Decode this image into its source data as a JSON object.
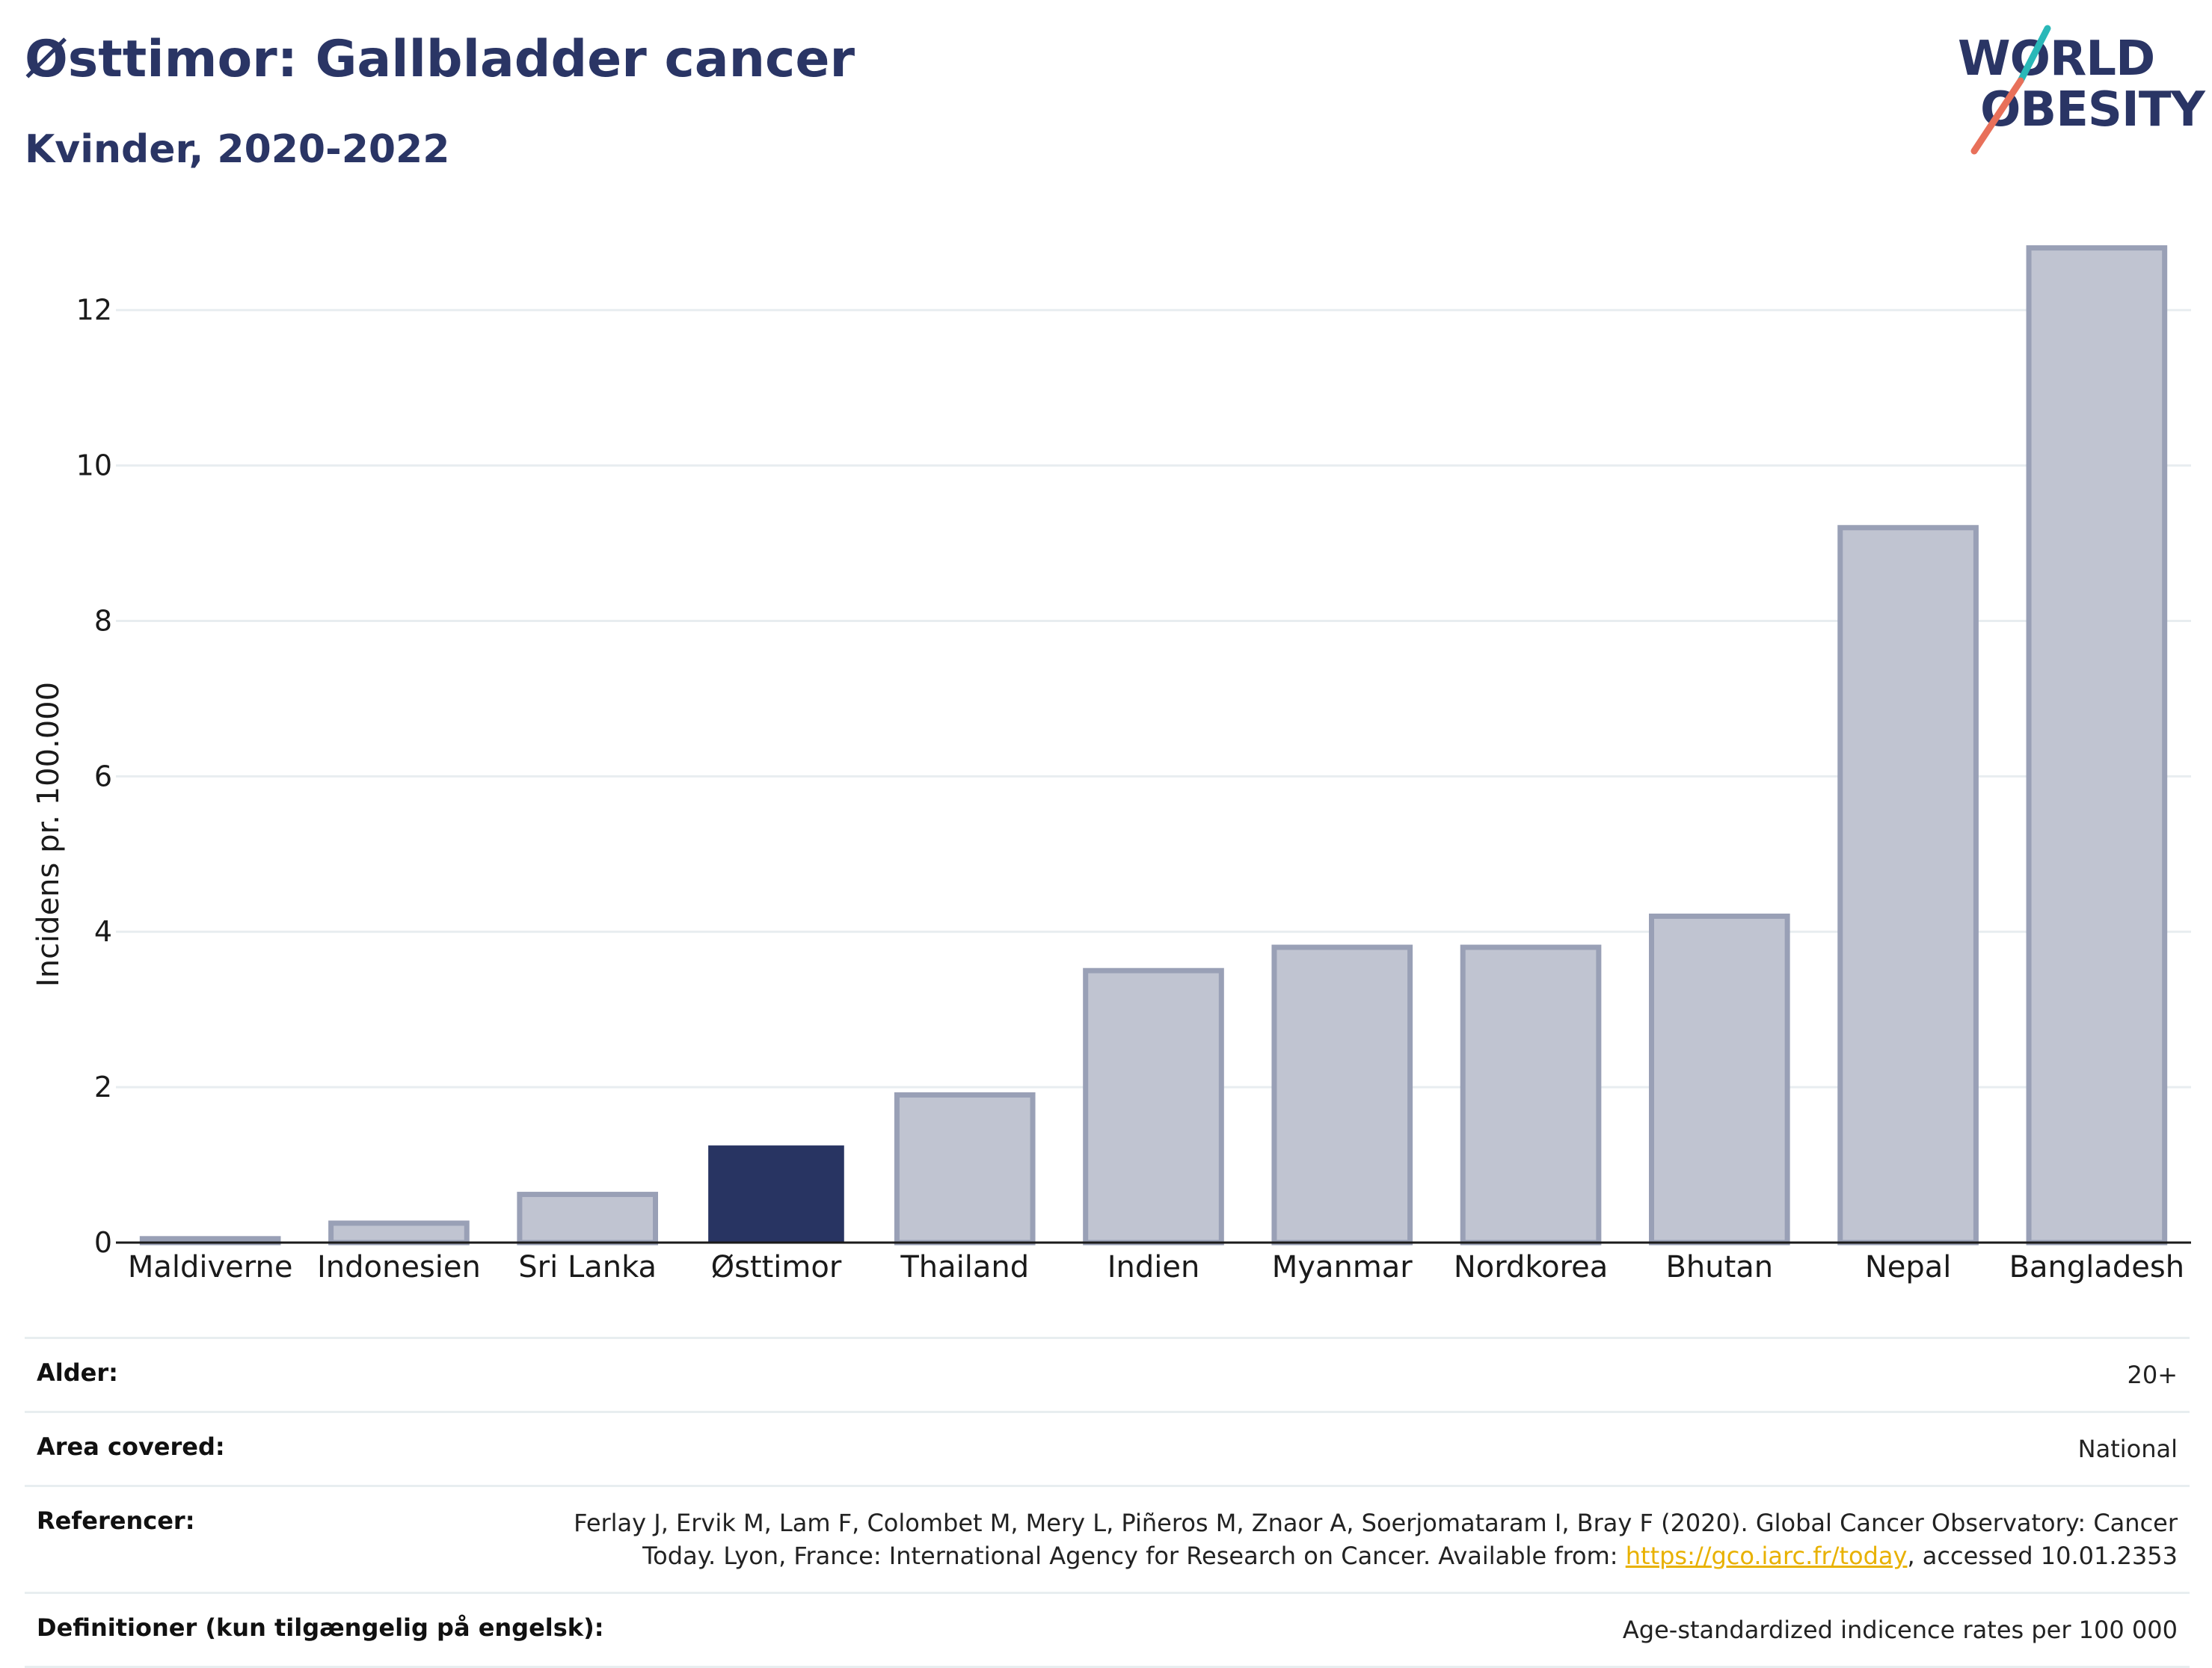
{
  "header": {
    "title": "Østtimor: Gallbladder cancer",
    "subtitle": "Kvinder, 2020-2022"
  },
  "logo": {
    "line1": "WORLD",
    "line2": "OBESITY",
    "brand_color": "#2a3565",
    "accent_colors": [
      "#2ab8b8",
      "#e8705a"
    ]
  },
  "colors": {
    "highlight_bar": "#283462",
    "other_bar_fill": "#c0c4d1",
    "other_bar_stroke": "#99a0b6",
    "grid": "#e8edf0",
    "axis": "#1a1a1a"
  },
  "chart_data": {
    "type": "bar",
    "ylabel": "Incidens pr. 100.000",
    "ylim": [
      0,
      13.2
    ],
    "yticks": [
      0,
      2,
      4,
      6,
      8,
      10,
      12
    ],
    "grid": true,
    "highlight": "Østtimor",
    "categories": [
      "Maldiverne",
      "Indonesien",
      "Sri Lanka",
      "Østtimor",
      "Thailand",
      "Indien",
      "Myanmar",
      "Nordkorea",
      "Bhutan",
      "Nepal",
      "Bangladesh"
    ],
    "values": [
      0.05,
      0.25,
      0.62,
      1.25,
      1.9,
      3.5,
      3.8,
      3.8,
      4.2,
      9.2,
      12.8
    ]
  },
  "meta": {
    "rows": [
      {
        "key": "Alder:",
        "value": "20+"
      },
      {
        "key": "Area covered:",
        "value": "National"
      },
      {
        "key": "Referencer:",
        "value_line1": "Ferlay J, Ervik M, Lam F, Colombet M, Mery L, Piñeros M, Znaor A, Soerjomataram I, Bray F (2020). Global Cancer Observatory: Cancer",
        "value_line2_pre": "Today. Lyon, France: International Agency for Research on Cancer. Available from: ",
        "link": "https://gco.iarc.fr/today",
        "value_line2_post": ", accessed 10.01.2353"
      },
      {
        "key": "Definitioner (kun tilgængelig på engelsk):",
        "value": "Age-standardized indicence rates per 100 000"
      }
    ]
  }
}
